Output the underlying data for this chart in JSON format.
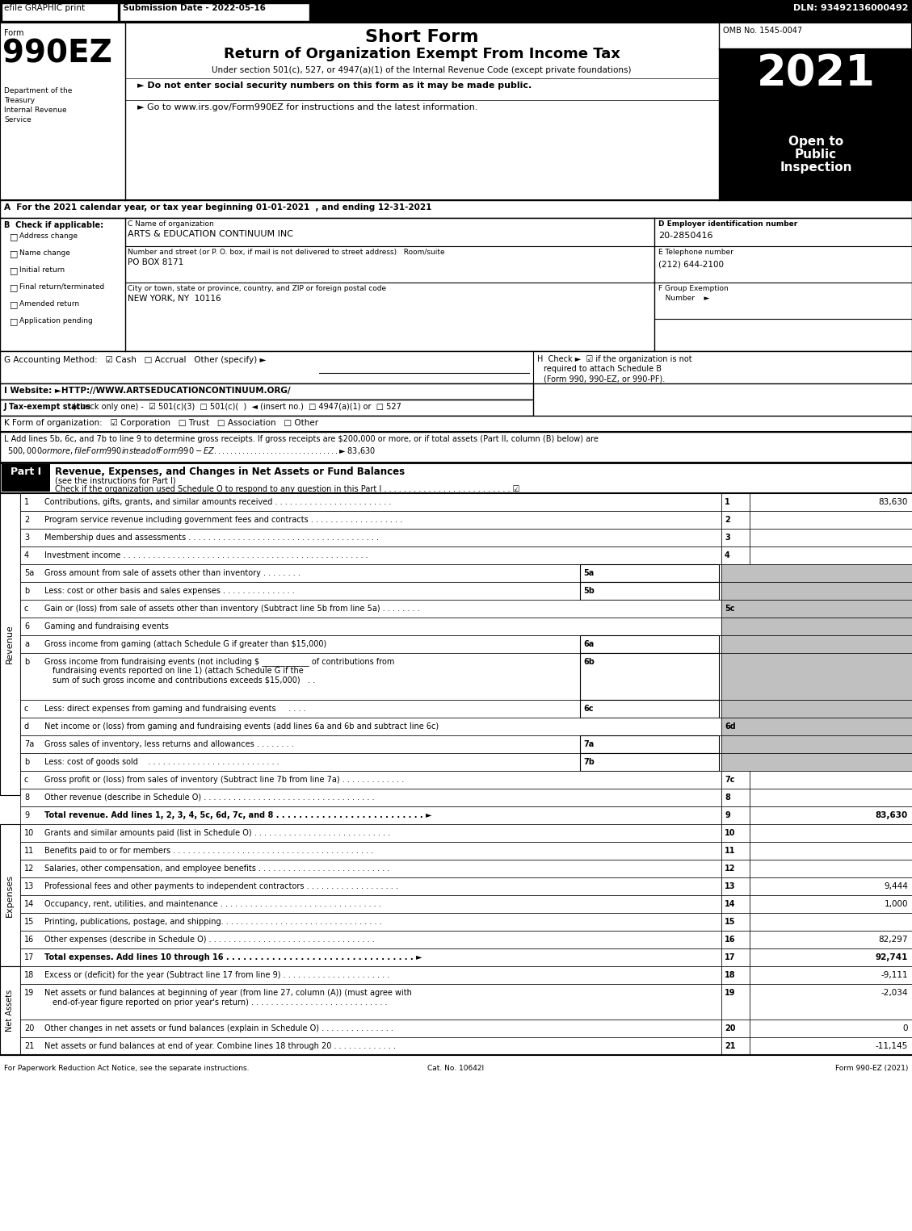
{
  "title_short_form": "Short Form",
  "title_return": "Return of Organization Exempt From Income Tax",
  "subtitle": "Under section 501(c), 527, or 4947(a)(1) of the Internal Revenue Code (except private foundations)",
  "bullet1": "► Do not enter social security numbers on this form as it may be made public.",
  "bullet2": "► Go to www.irs.gov/Form990EZ for instructions and the latest information.",
  "efile_text": "efile GRAPHIC print",
  "submission_date": "Submission Date - 2022-05-16",
  "dln": "DLN: 93492136000492",
  "form_number": "990EZ",
  "year": "2021",
  "omb": "OMB No. 1545-0047",
  "dept1": "Department of the",
  "dept2": "Treasury",
  "dept3": "Internal Revenue",
  "dept4": "Service",
  "line_A": "A  For the 2021 calendar year, or tax year beginning 01-01-2021  , and ending 12-31-2021",
  "check_items": [
    "Address change",
    "Name change",
    "Initial return",
    "Final return/terminated",
    "Amended return",
    "Application pending"
  ],
  "org_name": "ARTS & EDUCATION CONTINUUM INC",
  "street": "PO BOX 8171",
  "city": "NEW YORK, NY  10116",
  "ein": "20-2850416",
  "phone": "(212) 644-2100",
  "footer_left": "For Paperwork Reduction Act Notice, see the separate instructions.",
  "footer_cat": "Cat. No. 10642I",
  "footer_right": "Form 990-EZ (2021)"
}
